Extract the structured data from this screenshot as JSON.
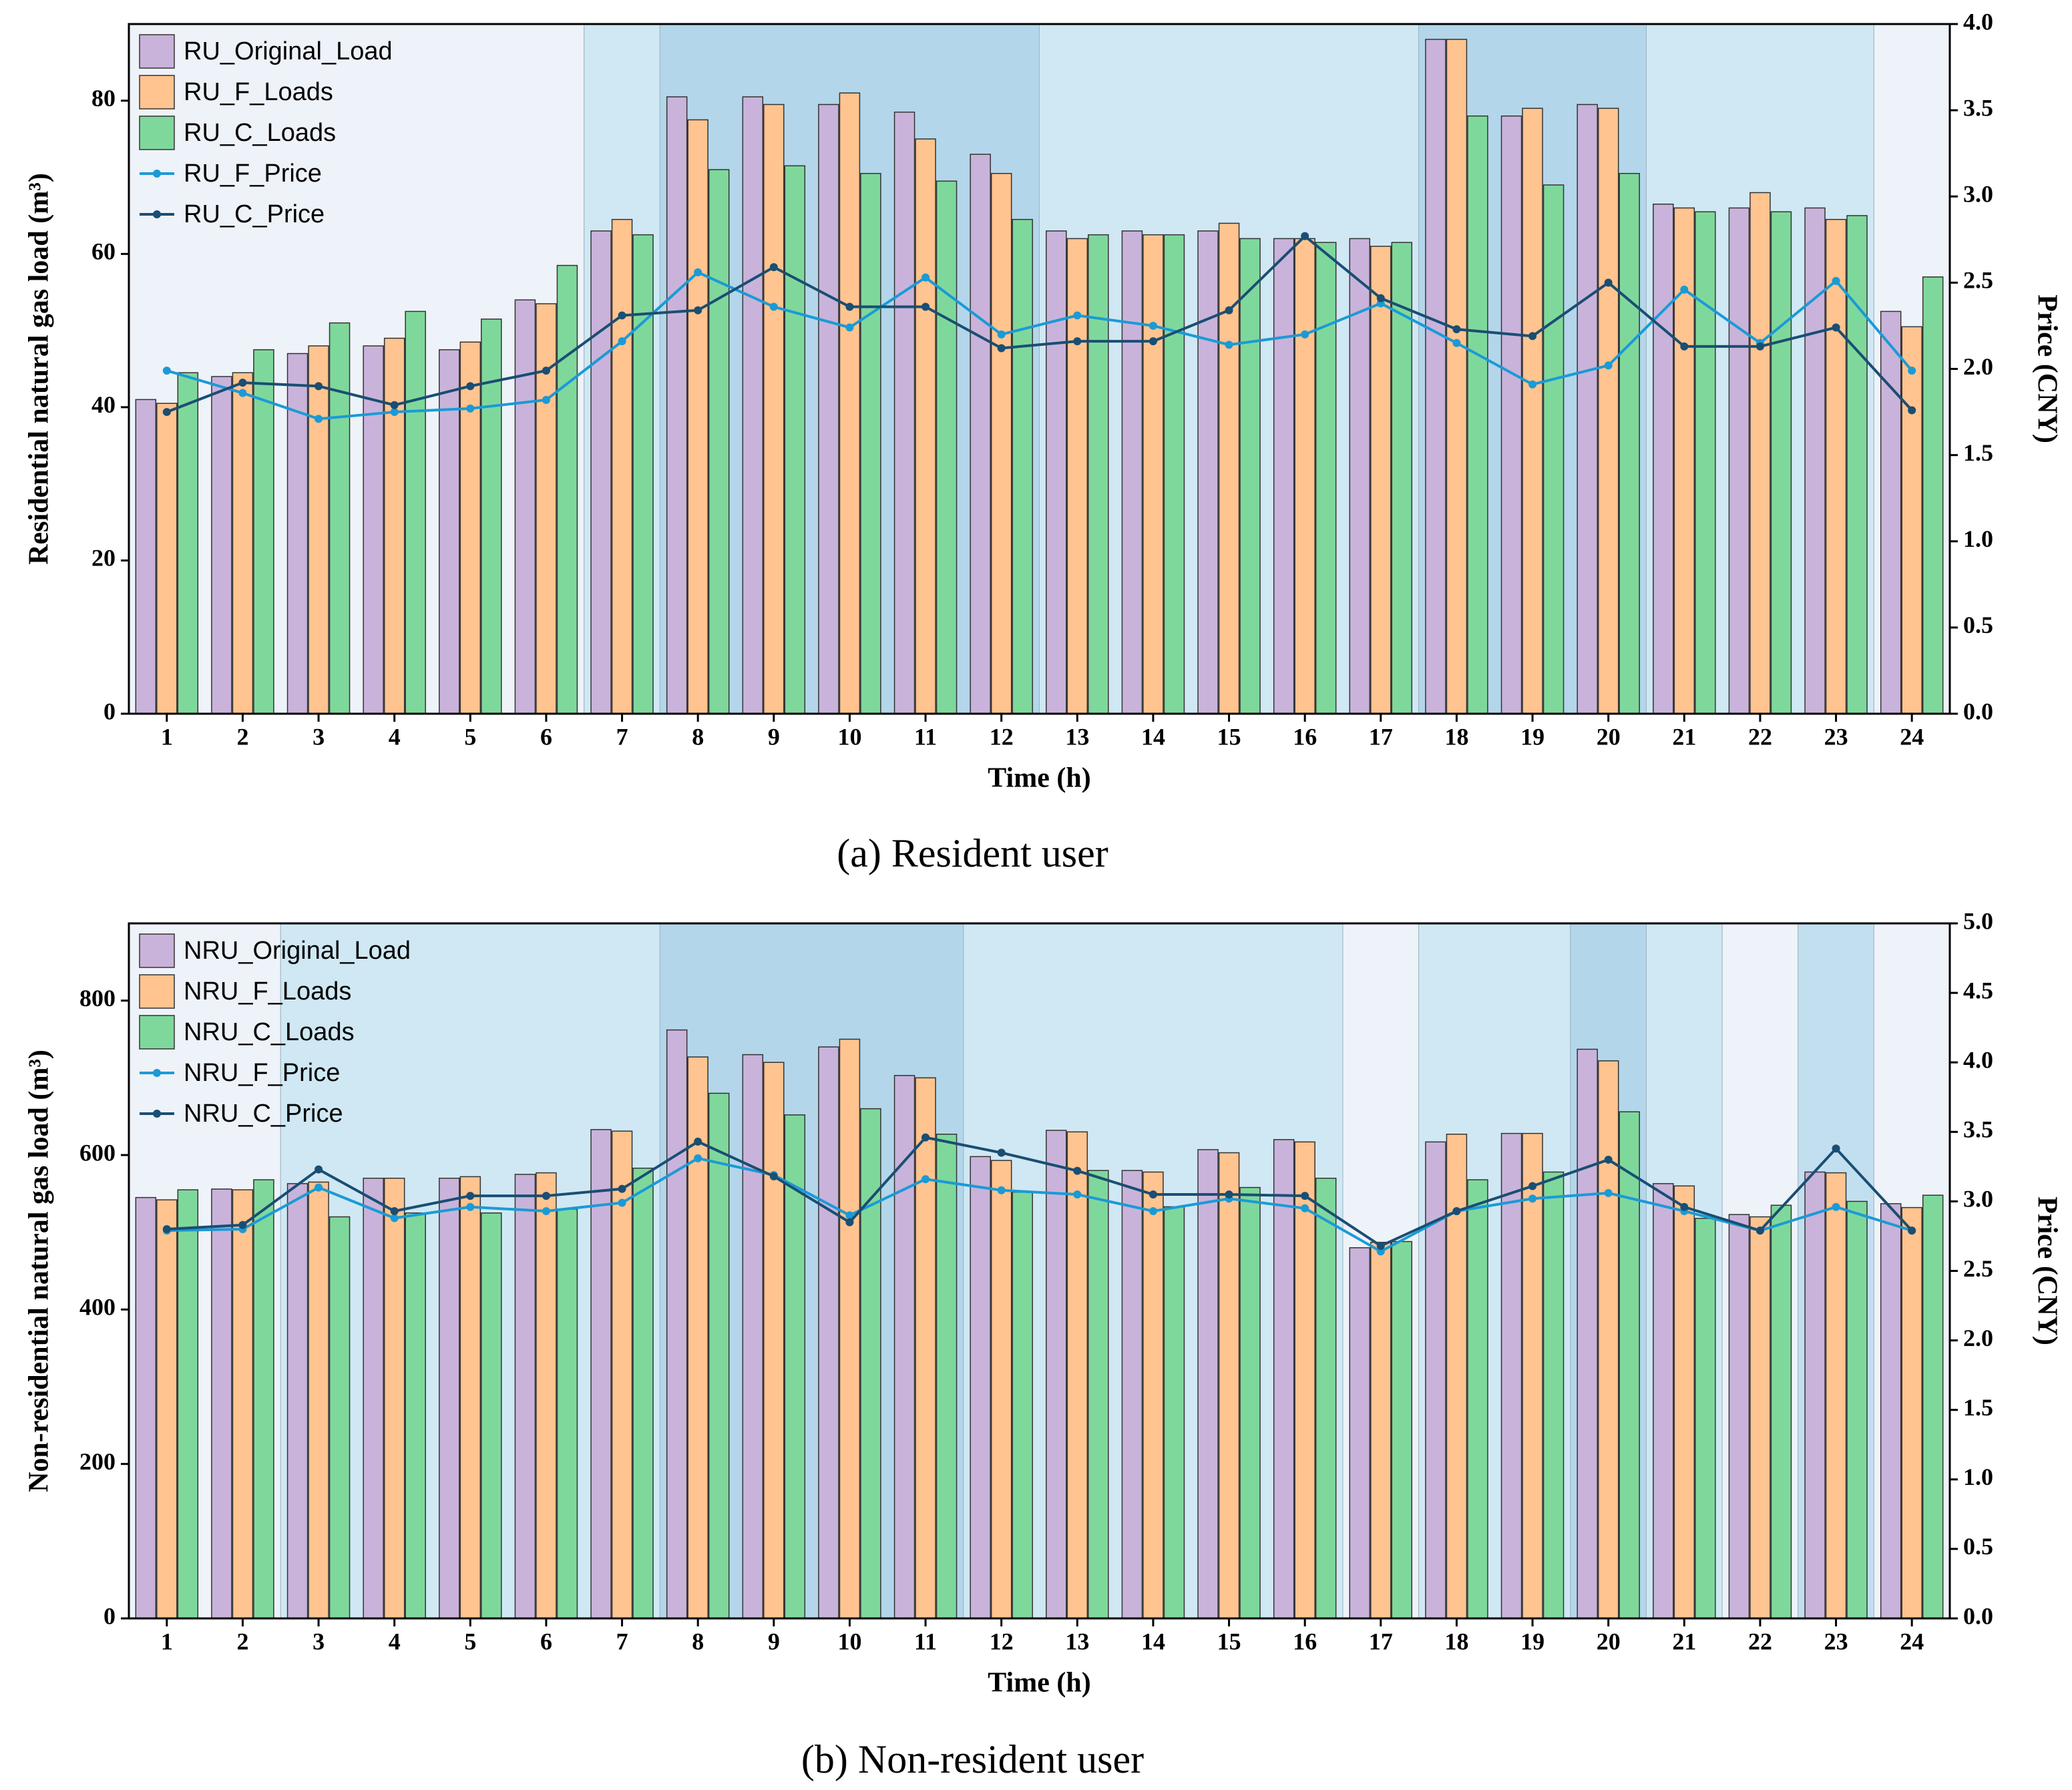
{
  "chart_data": [
    {
      "type": "bar_line",
      "caption": "(a) Resident user",
      "x_label": "Time (h)",
      "y_label": "Residential natural gas load (m³)",
      "y2_label": "Price (CNY)",
      "categories": [
        "1",
        "2",
        "3",
        "4",
        "5",
        "6",
        "7",
        "8",
        "9",
        "10",
        "11",
        "12",
        "13",
        "14",
        "15",
        "16",
        "17",
        "18",
        "19",
        "20",
        "21",
        "22",
        "23",
        "24"
      ],
      "ylim": [
        0,
        90
      ],
      "yticks": [
        0,
        20,
        40,
        60,
        80
      ],
      "y2lim": [
        0,
        4
      ],
      "y2ticks": [
        {
          "value": 0,
          "label": "0.0"
        },
        0.5,
        {
          "value": 1,
          "label": "1.0"
        },
        1.5,
        {
          "value": 2,
          "label": "2.0"
        },
        2.5,
        {
          "value": 3,
          "label": "3.0"
        },
        3.5,
        {
          "value": 4,
          "label": "4.0"
        }
      ],
      "legend": "upper left",
      "grid": false,
      "series": [
        {
          "name": "RU_Original_Load",
          "kind": "bar",
          "color": "#c9b3da",
          "values": [
            41,
            44,
            47,
            48,
            47.5,
            54,
            63,
            80.5,
            80.5,
            79.5,
            78.5,
            73,
            63,
            63,
            63,
            62,
            62,
            88,
            78,
            79.5,
            66.5,
            66,
            66,
            52.5
          ]
        },
        {
          "name": "RU_F_Loads",
          "kind": "bar",
          "color": "#ffc48f",
          "values": [
            40.5,
            44.5,
            48,
            49,
            48.5,
            53.5,
            64.5,
            77.5,
            79.5,
            81,
            75,
            70.5,
            62,
            62.5,
            64,
            62,
            61,
            88,
            79,
            79,
            66,
            68,
            64.5,
            50.5
          ]
        },
        {
          "name": "RU_C_Loads",
          "kind": "bar",
          "color": "#7fd89b",
          "values": [
            44.5,
            47.5,
            51,
            52.5,
            51.5,
            58.5,
            62.5,
            71,
            71.5,
            70.5,
            69.5,
            64.5,
            62.5,
            62.5,
            62,
            61.5,
            61.5,
            78,
            69,
            70.5,
            65.5,
            65.5,
            65,
            57
          ]
        },
        {
          "name": "RU_F_Price",
          "kind": "line",
          "axis": "y2",
          "color": "#1b9ad6",
          "values": [
            1.99,
            1.86,
            1.71,
            1.75,
            1.77,
            1.82,
            2.16,
            2.56,
            2.36,
            2.24,
            2.53,
            2.2,
            2.31,
            2.25,
            2.14,
            2.2,
            2.38,
            2.15,
            1.91,
            2.02,
            2.46,
            2.15,
            2.51,
            1.99
          ]
        },
        {
          "name": "RU_C_Price",
          "kind": "line",
          "axis": "y2",
          "color": "#1a4e73",
          "values": [
            1.75,
            1.92,
            1.9,
            1.79,
            1.9,
            1.99,
            2.31,
            2.34,
            2.59,
            2.36,
            2.36,
            2.12,
            2.16,
            2.16,
            2.34,
            2.77,
            2.41,
            2.23,
            2.19,
            2.5,
            2.13,
            2.13,
            2.24,
            1.76
          ]
        }
      ]
    },
    {
      "type": "bar_line",
      "caption": "(b) Non-resident user",
      "x_label": "Time (h)",
      "y_label": "Non-residential natural gas load (m³)",
      "y2_label": "Price (CNY)",
      "categories": [
        "1",
        "2",
        "3",
        "4",
        "5",
        "6",
        "7",
        "8",
        "9",
        "10",
        "11",
        "12",
        "13",
        "14",
        "15",
        "16",
        "17",
        "18",
        "19",
        "20",
        "21",
        "22",
        "23",
        "24"
      ],
      "ylim": [
        0,
        900
      ],
      "yticks": [
        0,
        200,
        400,
        600,
        800
      ],
      "y2lim": [
        0,
        5
      ],
      "y2ticks": [
        {
          "value": 0,
          "label": "0.0"
        },
        0.5,
        {
          "value": 1,
          "label": "1.0"
        },
        1.5,
        {
          "value": 2,
          "label": "2.0"
        },
        2.5,
        {
          "value": 3,
          "label": "3.0"
        },
        3.5,
        {
          "value": 4,
          "label": "4.0"
        },
        4.5,
        {
          "value": 5,
          "label": "5.0"
        }
      ],
      "legend": "upper left",
      "grid": false,
      "series": [
        {
          "name": "NRU_Original_Load",
          "kind": "bar",
          "color": "#c9b3da",
          "values": [
            545,
            556,
            563,
            570,
            570,
            575,
            633,
            762,
            730,
            740,
            703,
            598,
            632,
            580,
            607,
            620,
            480,
            617,
            628,
            737,
            563,
            523,
            578,
            537
          ]
        },
        {
          "name": "NRU_F_Loads",
          "kind": "bar",
          "color": "#ffc48f",
          "values": [
            542,
            555,
            565,
            570,
            572,
            577,
            631,
            727,
            720,
            750,
            700,
            593,
            630,
            578,
            603,
            617,
            487,
            627,
            628,
            722,
            560,
            520,
            577,
            532
          ]
        },
        {
          "name": "NRU_C_Loads",
          "kind": "bar",
          "color": "#7fd89b",
          "values": [
            555,
            568,
            520,
            525,
            525,
            530,
            583,
            680,
            652,
            660,
            627,
            552,
            580,
            533,
            558,
            570,
            488,
            568,
            578,
            656,
            518,
            535,
            540,
            548
          ]
        },
        {
          "name": "NRU_F_Price",
          "kind": "line",
          "axis": "y2",
          "color": "#1b9ad6",
          "values": [
            2.79,
            2.8,
            3.1,
            2.88,
            2.96,
            2.93,
            2.99,
            3.31,
            3.19,
            2.9,
            3.16,
            3.08,
            3.05,
            2.93,
            3.02,
            2.95,
            2.64,
            2.93,
            3.02,
            3.06,
            2.93,
            2.79,
            2.96,
            2.79
          ]
        },
        {
          "name": "NRU_C_Price",
          "kind": "line",
          "axis": "y2",
          "color": "#1a4e73",
          "values": [
            2.8,
            2.83,
            3.23,
            2.93,
            3.04,
            3.04,
            3.09,
            3.43,
            3.18,
            2.85,
            3.46,
            3.35,
            3.22,
            3.05,
            3.05,
            3.04,
            2.68,
            2.93,
            3.11,
            3.3,
            2.96,
            2.79,
            3.38,
            2.79
          ]
        }
      ]
    }
  ]
}
